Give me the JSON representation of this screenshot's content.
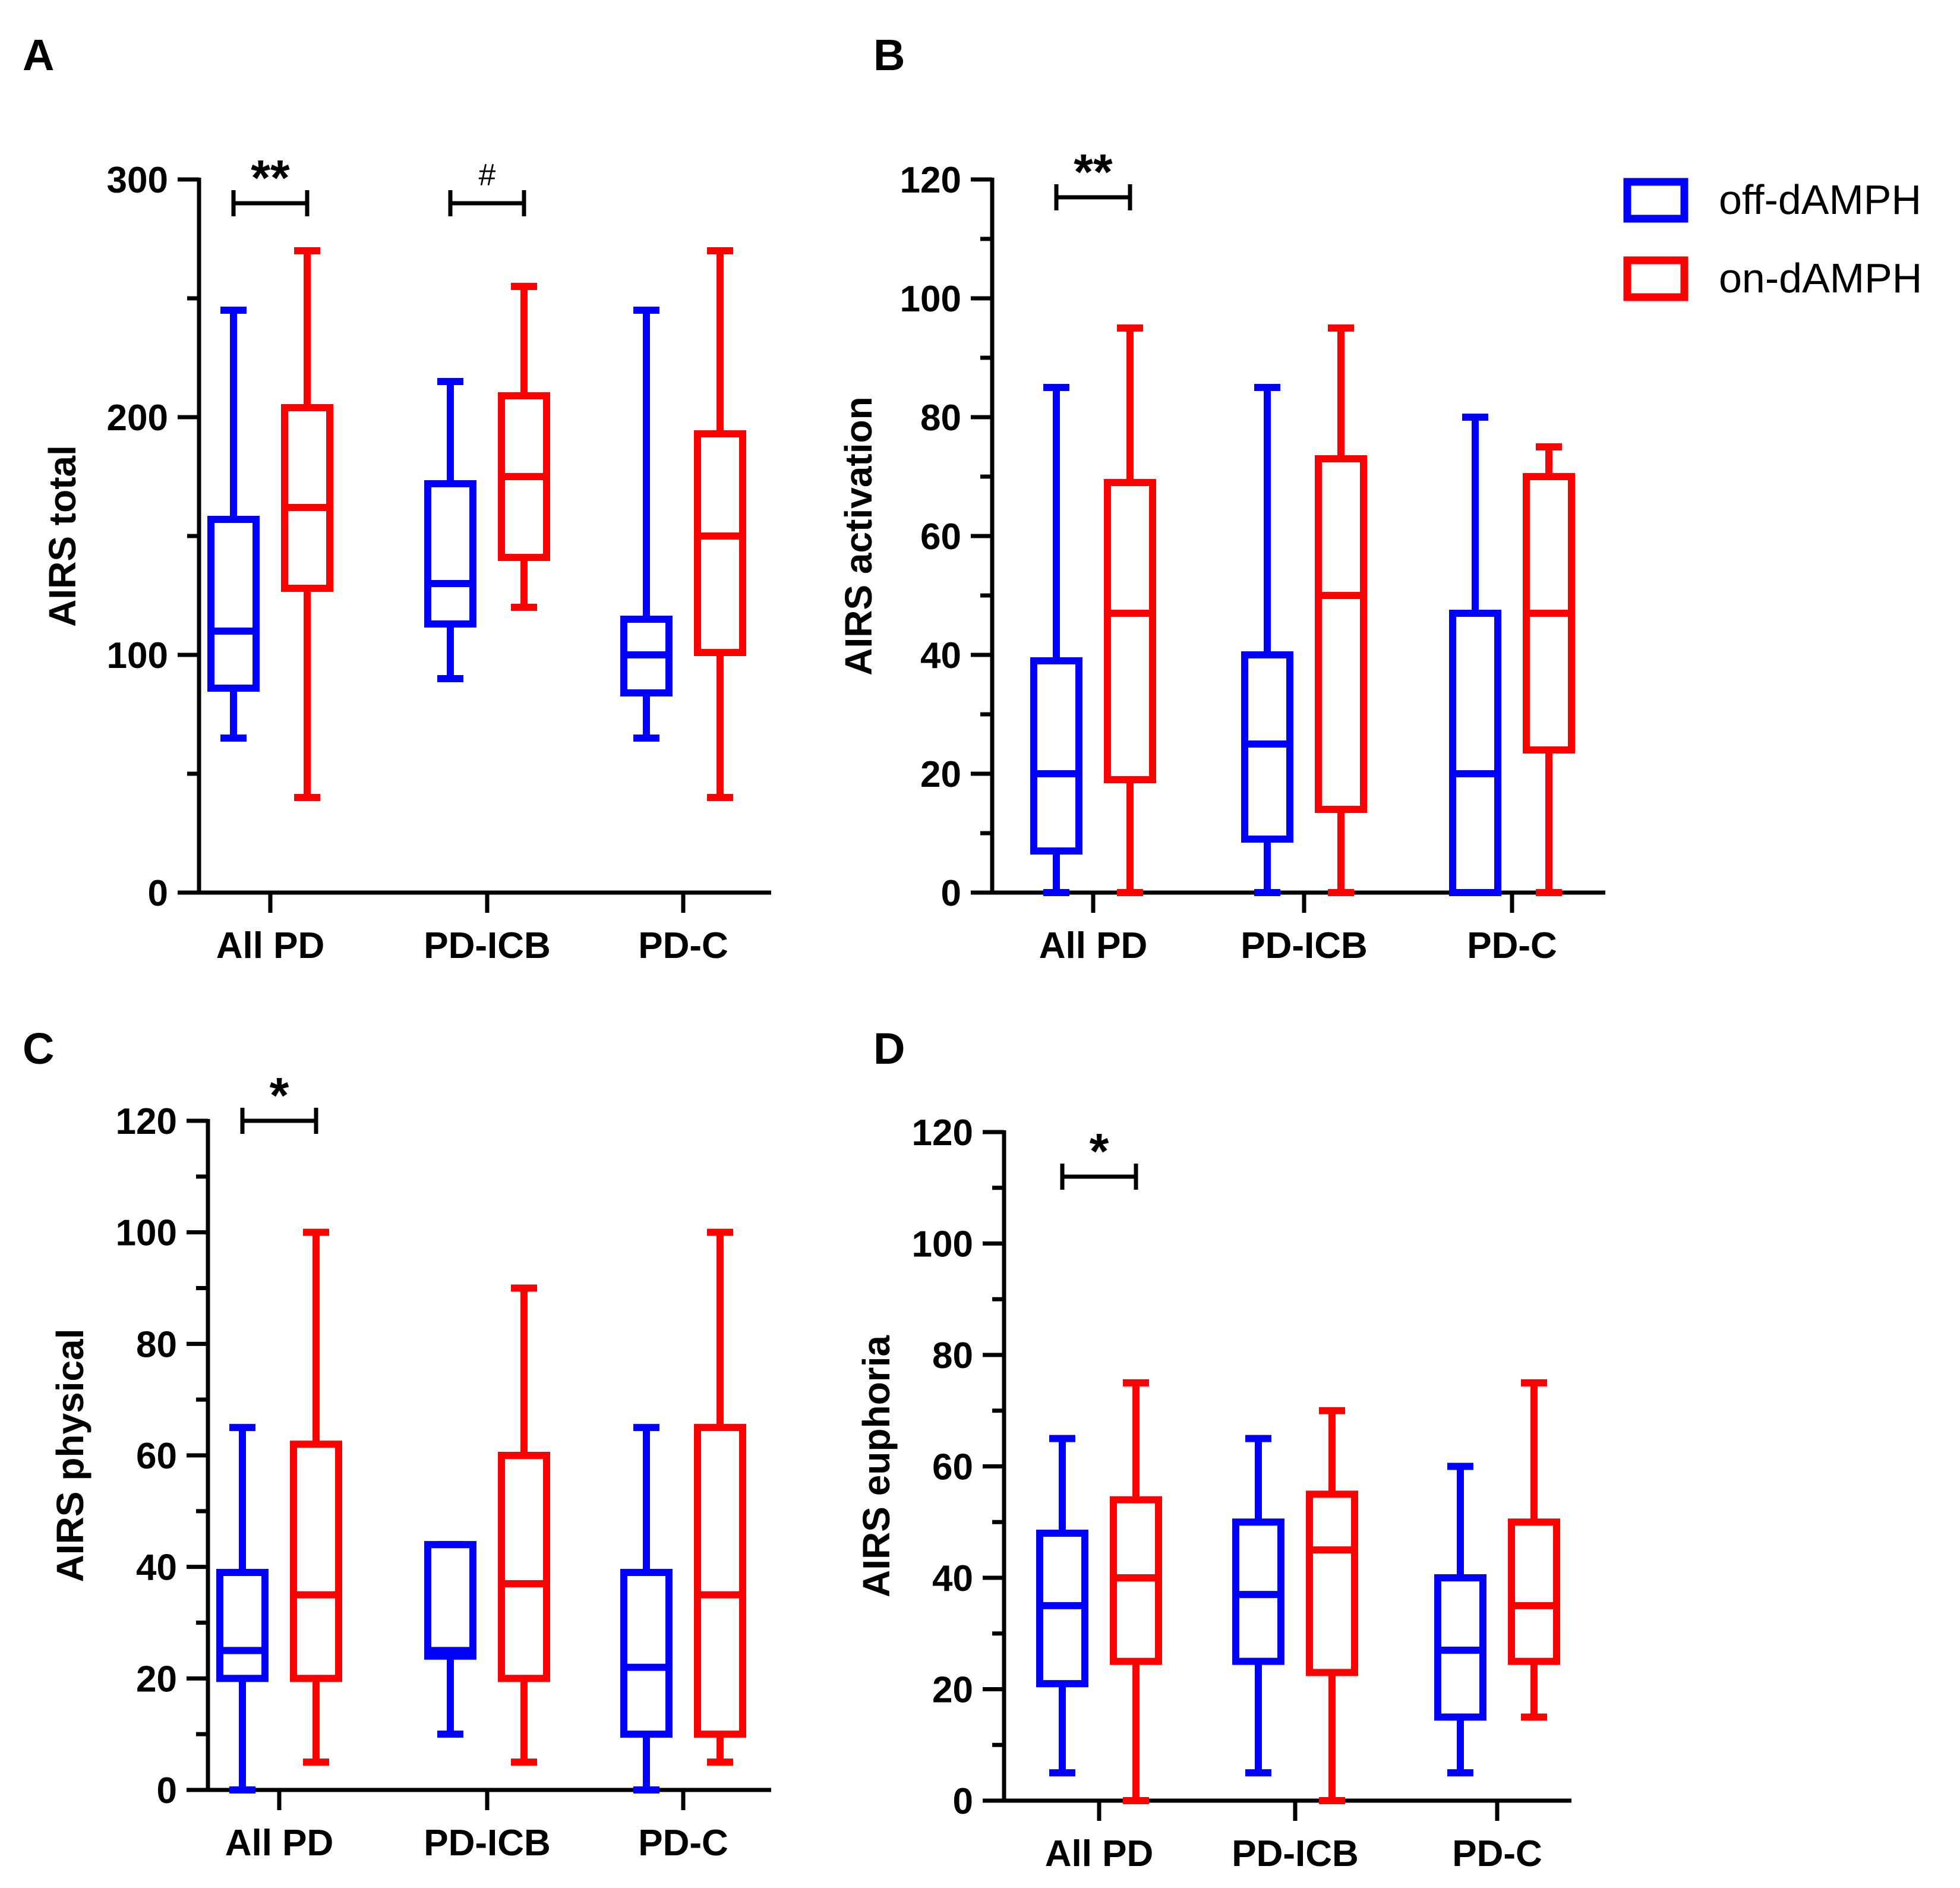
{
  "legend": {
    "items": [
      {
        "label": "off-dAMPH",
        "color": "#0000ff"
      },
      {
        "label": "on-dAMPH",
        "color": "#ff0000"
      }
    ]
  },
  "chart_data": [
    {
      "panel": "A",
      "type": "box",
      "ylabel": "AIRS total",
      "ylim": [
        0,
        300
      ],
      "yticks": [
        0,
        100,
        200,
        300
      ],
      "yticklabels": [
        "0",
        "100",
        "200",
        "300"
      ],
      "categories": [
        "All PD",
        "PD-ICB",
        "PD-C"
      ],
      "series": [
        {
          "name": "off-dAMPH",
          "color": "#0000ff",
          "boxes": [
            {
              "min": 65,
              "q1": 86,
              "median": 110,
              "q3": 157,
              "max": 245
            },
            {
              "min": 90,
              "q1": 113,
              "median": 130,
              "q3": 172,
              "max": 215
            },
            {
              "min": 65,
              "q1": 84,
              "median": 100,
              "q3": 115,
              "max": 245
            }
          ]
        },
        {
          "name": "on-dAMPH",
          "color": "#ff0000",
          "boxes": [
            {
              "min": 40,
              "q1": 128,
              "median": 162,
              "q3": 204,
              "max": 270
            },
            {
              "min": 120,
              "q1": 141,
              "median": 175,
              "q3": 209,
              "max": 255
            },
            {
              "min": 40,
              "q1": 101,
              "median": 150,
              "q3": 193,
              "max": 270
            }
          ]
        }
      ],
      "annotations": [
        {
          "label": "**",
          "category": "All PD",
          "size": "large",
          "y": 290
        },
        {
          "label": "#",
          "category": "PD-ICB",
          "size": "small",
          "y": 290
        }
      ]
    },
    {
      "panel": "B",
      "type": "box",
      "ylabel": "AIRS activation",
      "ylim": [
        0,
        120
      ],
      "yticks": [
        0,
        20,
        40,
        60,
        80,
        100,
        120
      ],
      "yticklabels": [
        "0",
        "20",
        "40",
        "60",
        "80",
        "100",
        "120"
      ],
      "categories": [
        "All PD",
        "PD-ICB",
        "PD-C"
      ],
      "series": [
        {
          "name": "off-dAMPH",
          "color": "#0000ff",
          "boxes": [
            {
              "min": 0,
              "q1": 7,
              "median": 20,
              "q3": 39,
              "max": 85
            },
            {
              "min": 0,
              "q1": 9,
              "median": 25,
              "q3": 40,
              "max": 85
            },
            {
              "min": 0,
              "q1": 0,
              "median": 20,
              "q3": 47,
              "max": 80
            }
          ]
        },
        {
          "name": "on-dAMPH",
          "color": "#ff0000",
          "boxes": [
            {
              "min": 0,
              "q1": 19,
              "median": 47,
              "q3": 69,
              "max": 95
            },
            {
              "min": 0,
              "q1": 14,
              "median": 50,
              "q3": 73,
              "max": 95
            },
            {
              "min": 0,
              "q1": 24,
              "median": 47,
              "q3": 70,
              "max": 75
            }
          ]
        }
      ],
      "annotations": [
        {
          "label": "**",
          "category": "All PD",
          "size": "large",
          "y": 117
        }
      ]
    },
    {
      "panel": "C",
      "type": "box",
      "ylabel": "AIRS physical",
      "ylim": [
        0,
        120
      ],
      "yticks": [
        0,
        20,
        40,
        60,
        80,
        100,
        120
      ],
      "yticklabels": [
        "0",
        "20",
        "40",
        "60",
        "80",
        "100",
        "120"
      ],
      "categories": [
        "All PD",
        "PD-ICB",
        "PD-C"
      ],
      "series": [
        {
          "name": "off-dAMPH",
          "color": "#0000ff",
          "boxes": [
            {
              "min": 0,
              "q1": 20,
              "median": 25,
              "q3": 39,
              "max": 65
            },
            {
              "min": 10,
              "q1": 24,
              "median": 25,
              "q3": 44,
              "max": 44
            },
            {
              "min": 0,
              "q1": 10,
              "median": 22,
              "q3": 39,
              "max": 65
            }
          ]
        },
        {
          "name": "on-dAMPH",
          "color": "#ff0000",
          "boxes": [
            {
              "min": 5,
              "q1": 20,
              "median": 35,
              "q3": 62,
              "max": 100
            },
            {
              "min": 5,
              "q1": 20,
              "median": 37,
              "q3": 60,
              "max": 90
            },
            {
              "min": 5,
              "q1": 10,
              "median": 35,
              "q3": 65,
              "max": 100
            }
          ]
        }
      ],
      "annotations": [
        {
          "label": "*",
          "category": "All PD",
          "size": "large",
          "y": 120
        }
      ]
    },
    {
      "panel": "D",
      "type": "box",
      "ylabel": "AIRS euphoria",
      "ylim": [
        0,
        120
      ],
      "yticks": [
        0,
        20,
        40,
        60,
        80,
        100,
        120
      ],
      "yticklabels": [
        "0",
        "20",
        "40",
        "60",
        "80",
        "100",
        "120"
      ],
      "categories": [
        "All PD",
        "PD-ICB",
        "PD-C"
      ],
      "series": [
        {
          "name": "off-dAMPH",
          "color": "#0000ff",
          "boxes": [
            {
              "min": 5,
              "q1": 21,
              "median": 35,
              "q3": 48,
              "max": 65
            },
            {
              "min": 5,
              "q1": 25,
              "median": 37,
              "q3": 50,
              "max": 65
            },
            {
              "min": 5,
              "q1": 15,
              "median": 27,
              "q3": 40,
              "max": 60
            }
          ]
        },
        {
          "name": "on-dAMPH",
          "color": "#ff0000",
          "boxes": [
            {
              "min": 0,
              "q1": 25,
              "median": 40,
              "q3": 54,
              "max": 75
            },
            {
              "min": 0,
              "q1": 23,
              "median": 45,
              "q3": 55,
              "max": 70
            },
            {
              "min": 15,
              "q1": 25,
              "median": 35,
              "q3": 50,
              "max": 75
            }
          ]
        }
      ],
      "annotations": [
        {
          "label": "*",
          "category": "All PD",
          "size": "large",
          "y": 112
        }
      ]
    }
  ]
}
